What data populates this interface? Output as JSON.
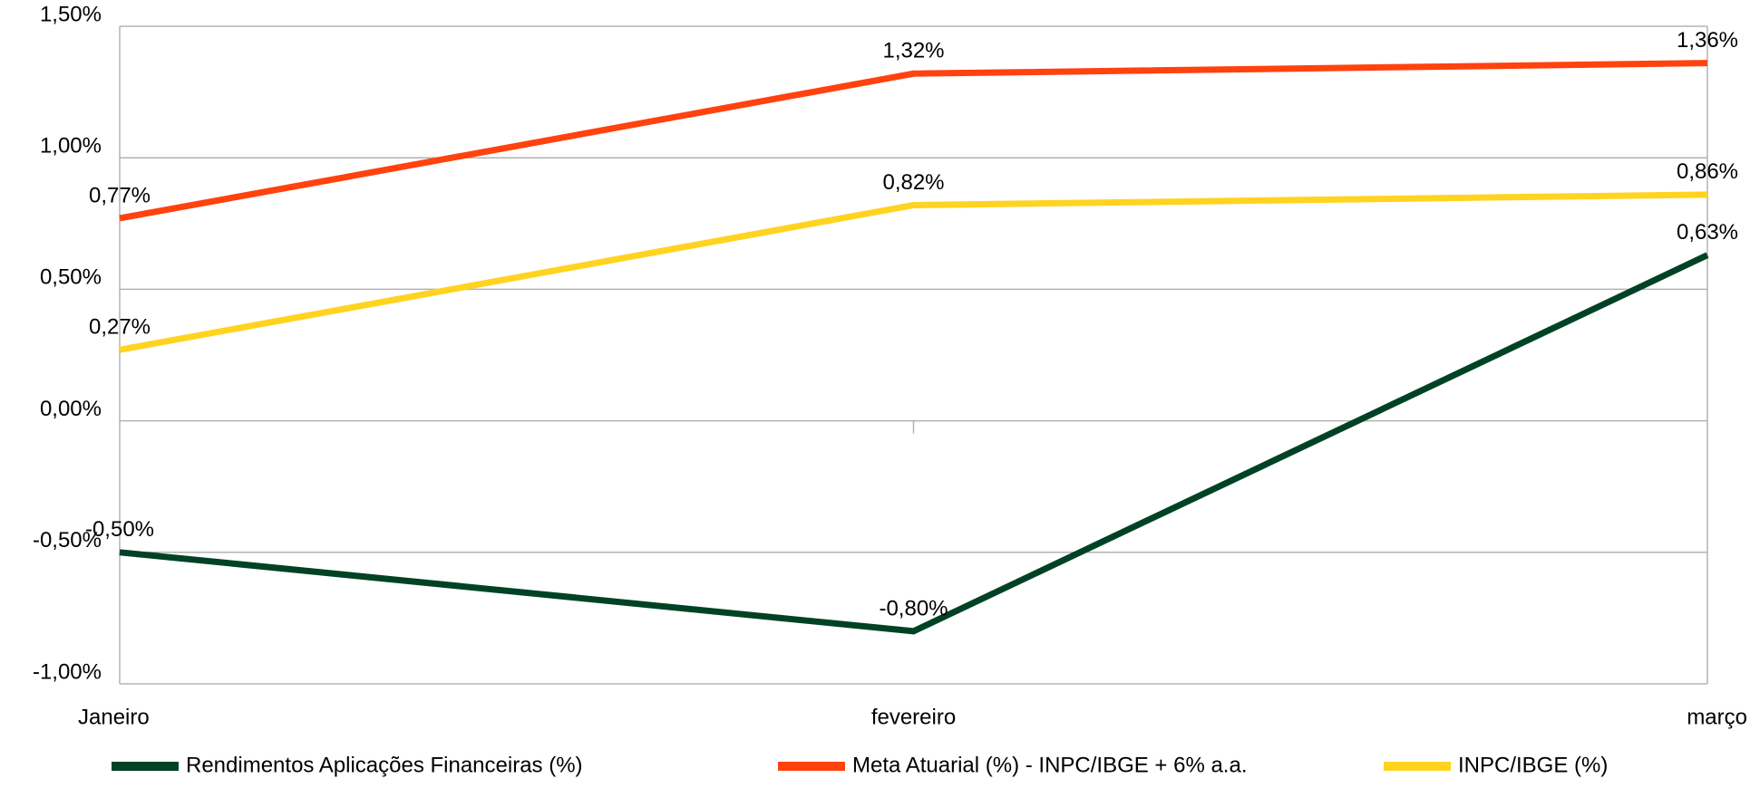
{
  "chart_data": {
    "type": "line",
    "categories": [
      "Janeiro",
      "fevereiro",
      "março"
    ],
    "series": [
      {
        "name": "Rendimentos Aplicações Financeiras (%)",
        "color": "#004225",
        "values": [
          -0.5,
          -0.8,
          0.63
        ],
        "value_labels": [
          "-0,50%",
          "-0,80%",
          "0,63%"
        ]
      },
      {
        "name": "Meta Atuarial (%) - INPC/IBGE + 6% a.a.",
        "color": "#ff420e",
        "values": [
          0.77,
          1.32,
          1.36
        ],
        "value_labels": [
          "0,77%",
          "1,32%",
          "1,36%"
        ]
      },
      {
        "name": "INPC/IBGE (%)",
        "color": "#ffd320",
        "values": [
          0.27,
          0.82,
          0.86
        ],
        "value_labels": [
          "0,27%",
          "0,82%",
          "0,86%"
        ]
      }
    ],
    "ylim": [
      -1.0,
      1.5
    ],
    "yticks": [
      {
        "value": -1.0,
        "label": "-1,00%"
      },
      {
        "value": -0.5,
        "label": "-0,50%"
      },
      {
        "value": 0.0,
        "label": "0,00%"
      },
      {
        "value": 0.5,
        "label": "0,50%"
      },
      {
        "value": 1.0,
        "label": "1,00%"
      },
      {
        "value": 1.5,
        "label": "1,50%"
      }
    ],
    "grid": true,
    "legend": "bottom"
  }
}
